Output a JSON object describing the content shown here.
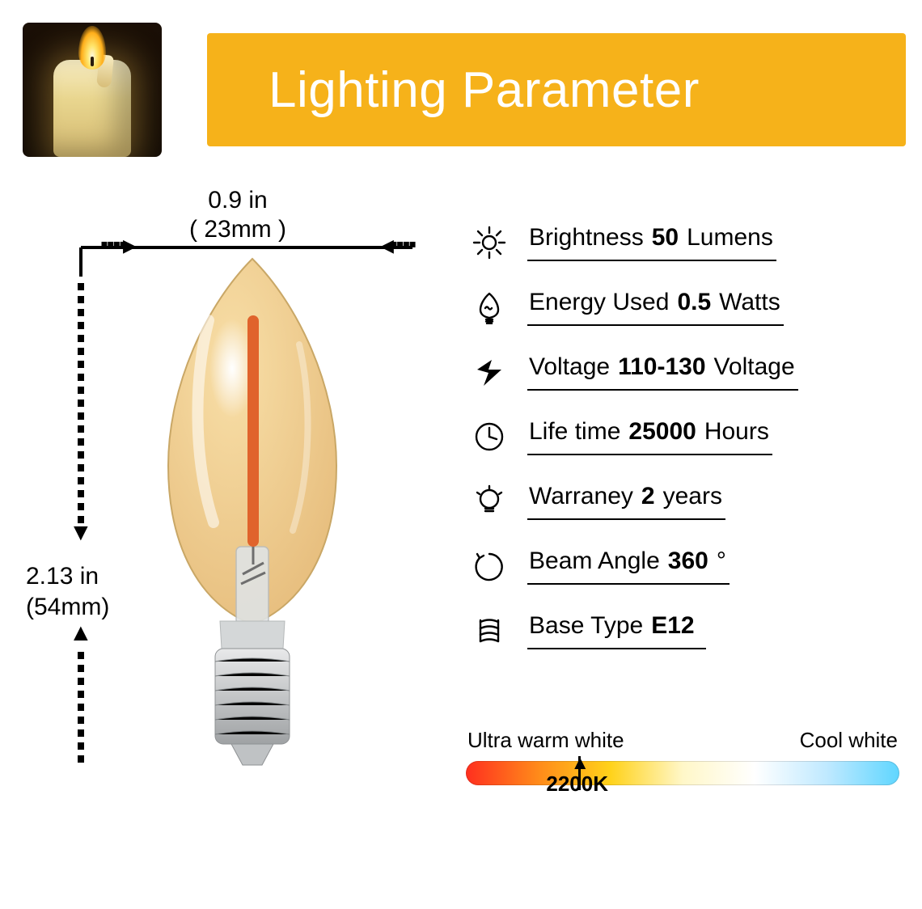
{
  "header": {
    "title": "Lighting Parameter",
    "banner_bg": "#f6b21a",
    "banner_text_color": "#ffffff"
  },
  "dimensions": {
    "width_in": "0.9 in",
    "width_mm": "( 23mm )",
    "height_in": "2.13 in",
    "height_mm": "(54mm)"
  },
  "bulb": {
    "glass_fill_top": "#f5d9a0",
    "glass_fill_bottom": "#e7be7e",
    "glass_highlight": "#ffffff",
    "filament_color": "#e0632c",
    "stem_color": "#b7baba",
    "base_metal_light": "#e8e9ea",
    "base_metal_dark": "#9fa2a4"
  },
  "specs": [
    {
      "icon": "sun",
      "label": "Brightness",
      "value": "50",
      "unit": "Lumens"
    },
    {
      "icon": "bulb",
      "label": "Energy Used",
      "value": "0.5",
      "unit": "Watts"
    },
    {
      "icon": "bolt",
      "label": "Voltage",
      "value": "110-130",
      "unit": "Voltage"
    },
    {
      "icon": "clock",
      "label": "Life time",
      "value": "25000",
      "unit": "Hours"
    },
    {
      "icon": "lamp",
      "label": "Warraney",
      "value": "2",
      "unit": "years"
    },
    {
      "icon": "angle",
      "label": "Beam Angle",
      "value": "360",
      "unit": "°"
    },
    {
      "icon": "screw",
      "label": "Base Type",
      "value": "E12",
      "unit": ""
    }
  ],
  "color_temp": {
    "left_label": "Ultra warm white",
    "right_label": "Cool white",
    "gradient": [
      "#ff2f1f",
      "#ff8a1a",
      "#ffd21a",
      "#fff7c8",
      "#ffffff",
      "#bfe9ff",
      "#5fd6ff"
    ],
    "marker_percent": 26,
    "marker_label": "2200K",
    "tick_color": "#000000"
  }
}
